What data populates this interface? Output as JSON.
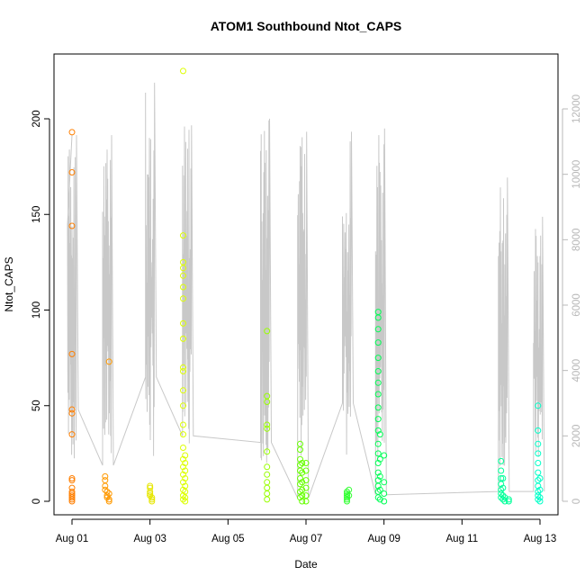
{
  "chart_data": {
    "type": "scatter",
    "title": "ATOM1 Southbound Ntot_CAPS",
    "xlabel": "Date",
    "ylabel": "Ntot_CAPS",
    "x_ticks": [
      "Aug 01",
      "Aug 03",
      "Aug 05",
      "Aug 07",
      "Aug 09",
      "Aug 11",
      "Aug 13"
    ],
    "x_tick_days": [
      1,
      3,
      5,
      7,
      9,
      11,
      13
    ],
    "xlim_days": [
      0.55,
      13.4
    ],
    "ylim": [
      -5,
      230
    ],
    "y_ticks": [
      0,
      50,
      100,
      150,
      200
    ],
    "y2_ticks": [
      0,
      2000,
      4000,
      6000,
      8000,
      10000,
      12000
    ],
    "y2lim": [
      -250,
      13000
    ],
    "grid": false,
    "legend": "none",
    "secondary_series_color": "#c8c8c8",
    "secondary_series_peaks": [
      {
        "day": 1.0,
        "value": 11200
      },
      {
        "day": 1.9,
        "value": 11200
      },
      {
        "day": 3.0,
        "value": 12800
      },
      {
        "day": 3.95,
        "value": 11500
      },
      {
        "day": 5.95,
        "value": 11700
      },
      {
        "day": 6.9,
        "value": 11300
      },
      {
        "day": 8.05,
        "value": 11300
      },
      {
        "day": 8.9,
        "value": 11400
      },
      {
        "day": 12.05,
        "value": 9900
      },
      {
        "day": 12.95,
        "value": 8700
      }
    ],
    "series": [
      {
        "color": "#ff7f00",
        "points": [
          [
            1.0,
            193
          ],
          [
            1.0,
            172
          ],
          [
            1.0,
            144
          ],
          [
            1.0,
            77
          ],
          [
            1.0,
            48
          ],
          [
            1.0,
            46
          ],
          [
            1.0,
            35
          ],
          [
            1.0,
            12
          ],
          [
            1.0,
            11
          ],
          [
            1.0,
            7
          ],
          [
            1.0,
            5
          ],
          [
            1.0,
            4
          ],
          [
            1.0,
            3
          ],
          [
            1.0,
            2
          ],
          [
            1.0,
            1
          ],
          [
            1.0,
            0
          ]
        ]
      },
      {
        "color": "#ff9900",
        "points": [
          [
            1.85,
            13
          ],
          [
            1.85,
            11
          ],
          [
            1.85,
            8
          ],
          [
            1.85,
            6
          ],
          [
            1.9,
            5
          ],
          [
            1.9,
            3
          ],
          [
            1.9,
            2
          ],
          [
            1.95,
            73
          ],
          [
            1.95,
            4
          ],
          [
            1.95,
            1
          ],
          [
            1.95,
            0
          ]
        ]
      },
      {
        "color": "#e6e600",
        "points": [
          [
            3.0,
            8
          ],
          [
            3.0,
            7
          ],
          [
            3.0,
            5
          ],
          [
            3.0,
            4
          ],
          [
            3.0,
            3
          ],
          [
            3.05,
            2
          ],
          [
            3.05,
            1
          ],
          [
            3.05,
            0
          ]
        ]
      },
      {
        "color": "#ddff00",
        "points": [
          [
            3.85,
            225
          ],
          [
            3.85,
            139
          ],
          [
            3.85,
            125
          ],
          [
            3.85,
            122
          ],
          [
            3.85,
            118
          ],
          [
            3.85,
            112
          ],
          [
            3.85,
            106
          ],
          [
            3.85,
            93
          ],
          [
            3.85,
            85
          ],
          [
            3.85,
            70
          ],
          [
            3.85,
            68
          ],
          [
            3.85,
            58
          ],
          [
            3.85,
            50
          ],
          [
            3.85,
            40
          ],
          [
            3.85,
            35
          ],
          [
            3.85,
            28
          ],
          [
            3.85,
            22
          ],
          [
            3.85,
            18
          ],
          [
            3.85,
            14
          ],
          [
            3.85,
            10
          ],
          [
            3.85,
            6
          ],
          [
            3.85,
            3
          ],
          [
            3.85,
            1
          ],
          [
            3.9,
            24
          ],
          [
            3.9,
            20
          ],
          [
            3.9,
            16
          ],
          [
            3.9,
            12
          ],
          [
            3.9,
            8
          ],
          [
            3.9,
            5
          ],
          [
            3.9,
            2
          ],
          [
            3.9,
            0
          ]
        ]
      },
      {
        "color": "#99ff00",
        "points": [
          [
            6.0,
            89
          ],
          [
            6.0,
            55
          ],
          [
            6.0,
            52
          ],
          [
            6.0,
            40
          ],
          [
            6.0,
            38
          ],
          [
            6.0,
            26
          ],
          [
            6.0,
            18
          ],
          [
            6.0,
            14
          ],
          [
            6.0,
            10
          ],
          [
            6.0,
            7
          ],
          [
            6.0,
            4
          ],
          [
            6.0,
            1
          ]
        ]
      },
      {
        "color": "#66ff00",
        "points": [
          [
            6.85,
            30
          ],
          [
            6.85,
            27
          ],
          [
            6.85,
            22
          ],
          [
            6.85,
            19
          ],
          [
            6.85,
            16
          ],
          [
            6.85,
            12
          ],
          [
            6.85,
            9
          ],
          [
            6.85,
            5
          ],
          [
            6.85,
            2
          ],
          [
            6.9,
            20
          ],
          [
            6.9,
            15
          ],
          [
            6.9,
            10
          ],
          [
            6.9,
            6
          ],
          [
            6.9,
            3
          ],
          [
            6.9,
            0
          ],
          [
            7.0,
            20
          ],
          [
            7.0,
            16
          ],
          [
            7.0,
            11
          ],
          [
            7.0,
            7
          ],
          [
            7.0,
            3
          ],
          [
            7.0,
            0
          ]
        ]
      },
      {
        "color": "#33ff33",
        "points": [
          [
            8.05,
            5
          ],
          [
            8.05,
            4
          ],
          [
            8.05,
            3
          ],
          [
            8.05,
            2
          ],
          [
            8.05,
            1
          ],
          [
            8.05,
            0
          ],
          [
            8.1,
            6
          ],
          [
            8.1,
            3
          ]
        ]
      },
      {
        "color": "#00ff55",
        "points": [
          [
            8.85,
            99
          ],
          [
            8.85,
            96
          ],
          [
            8.85,
            90
          ],
          [
            8.85,
            83
          ],
          [
            8.85,
            75
          ],
          [
            8.85,
            68
          ],
          [
            8.85,
            62
          ],
          [
            8.85,
            56
          ],
          [
            8.85,
            49
          ],
          [
            8.85,
            43
          ],
          [
            8.85,
            37
          ],
          [
            8.85,
            30
          ],
          [
            8.85,
            25
          ],
          [
            8.85,
            20
          ],
          [
            8.85,
            15
          ],
          [
            8.85,
            11
          ],
          [
            8.85,
            8
          ],
          [
            8.85,
            5
          ],
          [
            8.85,
            2
          ],
          [
            8.9,
            35
          ],
          [
            8.9,
            22
          ],
          [
            8.9,
            13
          ],
          [
            8.9,
            6
          ],
          [
            8.9,
            1
          ],
          [
            9.0,
            24
          ],
          [
            9.0,
            10
          ],
          [
            9.0,
            4
          ],
          [
            9.0,
            0
          ]
        ]
      },
      {
        "color": "#00ff99",
        "points": [
          [
            12.0,
            21
          ],
          [
            12.0,
            16
          ],
          [
            12.0,
            12
          ],
          [
            12.0,
            9
          ],
          [
            12.0,
            6
          ],
          [
            12.0,
            4
          ],
          [
            12.0,
            2
          ],
          [
            12.05,
            12
          ],
          [
            12.05,
            7
          ],
          [
            12.05,
            3
          ],
          [
            12.05,
            1
          ],
          [
            12.1,
            2
          ],
          [
            12.1,
            0
          ],
          [
            12.2,
            1
          ],
          [
            12.2,
            0
          ]
        ]
      },
      {
        "color": "#00ffc8",
        "points": [
          [
            12.95,
            50
          ],
          [
            12.95,
            37
          ],
          [
            12.95,
            30
          ],
          [
            12.95,
            25
          ],
          [
            12.95,
            20
          ],
          [
            12.95,
            15
          ],
          [
            12.95,
            11
          ],
          [
            12.95,
            8
          ],
          [
            12.95,
            5
          ],
          [
            12.95,
            3
          ],
          [
            12.95,
            1
          ],
          [
            13.0,
            12
          ],
          [
            13.0,
            6
          ],
          [
            13.0,
            2
          ],
          [
            13.0,
            0
          ]
        ]
      }
    ]
  }
}
